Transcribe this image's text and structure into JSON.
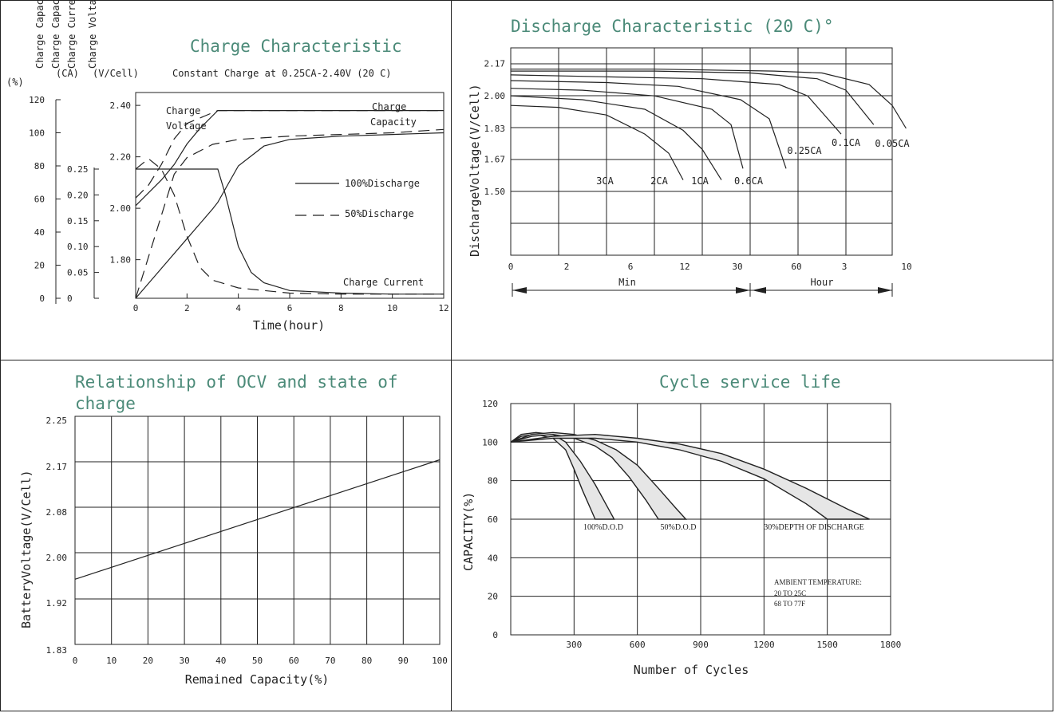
{
  "chart_data": [
    {
      "id": "charge",
      "type": "line",
      "title": "Charge Characteristic",
      "subtitle": "Constant Charge at 0.25CA-2.40V  (20 C)",
      "xlabel": "Time(hour)",
      "axis_headers": [
        "Charge Capacit",
        "Charge Curren",
        "Charge Voltag"
      ],
      "axis_units": [
        "(%)",
        "(CA)",
        "(V/Cell)"
      ],
      "xlim": [
        0,
        12
      ],
      "x_ticks": [
        "0",
        "2",
        "4",
        "6",
        "8",
        "10",
        "12"
      ],
      "capacity_ticks": [
        "0",
        "20",
        "40",
        "60",
        "80",
        "100",
        "120"
      ],
      "current_ticks": [
        "0",
        "0.05",
        "0.10",
        "0.15",
        "0.20",
        "0.25"
      ],
      "voltage_ticks": [
        "1.80",
        "2.00",
        "2.20",
        "2.40"
      ],
      "legend": [
        "100%Discharge",
        "50%Discharge"
      ],
      "annotations": [
        "Charge",
        "Voltage",
        "Charge",
        "Capacity",
        "Charge Current"
      ],
      "series": [
        {
          "style": "solid",
          "kind": "voltage",
          "x": [
            0,
            0.5,
            1.0,
            1.5,
            2.0,
            2.5,
            3.2,
            12
          ],
          "y": [
            2.01,
            2.06,
            2.11,
            2.17,
            2.25,
            2.31,
            2.38,
            2.38
          ]
        },
        {
          "style": "dashed",
          "kind": "voltage",
          "x": [
            0,
            0.5,
            1.0,
            1.5,
            2.0,
            3.2,
            12
          ],
          "y": [
            2.04,
            2.09,
            2.17,
            2.27,
            2.33,
            2.38,
            2.38
          ]
        },
        {
          "style": "solid",
          "kind": "capacity",
          "x": [
            0,
            1,
            2,
            3,
            3.2,
            4,
            5,
            6,
            8,
            10,
            12
          ],
          "y": [
            0,
            18,
            36,
            54,
            58,
            80,
            92,
            96,
            98,
            99,
            100
          ]
        },
        {
          "style": "dashed",
          "kind": "capacity",
          "x": [
            0,
            0.5,
            1,
            1.5,
            2,
            3,
            4,
            6,
            8,
            10,
            12
          ],
          "y": [
            0,
            25,
            50,
            75,
            85,
            93,
            96,
            98,
            99,
            100,
            102
          ]
        },
        {
          "style": "solid",
          "kind": "current",
          "x": [
            0,
            3.2,
            3.5,
            4,
            4.5,
            5,
            6,
            8,
            10,
            12
          ],
          "y": [
            0.25,
            0.25,
            0.2,
            0.1,
            0.05,
            0.03,
            0.015,
            0.01,
            0.008,
            0.008
          ]
        },
        {
          "style": "dashed",
          "kind": "current",
          "x": [
            0,
            0.5,
            1.0,
            1.5,
            2,
            2.5,
            3,
            4,
            5,
            6,
            8,
            12
          ],
          "y": [
            0.25,
            0.27,
            0.25,
            0.2,
            0.12,
            0.06,
            0.035,
            0.02,
            0.015,
            0.01,
            0.008,
            0.008
          ]
        }
      ]
    },
    {
      "id": "discharge",
      "type": "line",
      "title": "Discharge Characteristic  (20 C)°",
      "ylabel": "DischargeVoltage(V/Cell)",
      "y_ticks": [
        "1.50",
        "1.67",
        "1.83",
        "2.00",
        "2.17"
      ],
      "x_ticks": [
        "0",
        "2",
        "6",
        "12",
        "30",
        "60",
        "3",
        "10"
      ],
      "x_groups": [
        "Min",
        "Hour"
      ],
      "series": [
        {
          "name": "3CA",
          "x": [
            0,
            1,
            2,
            2.8,
            3.3,
            3.6
          ],
          "y": [
            1.95,
            1.94,
            1.9,
            1.8,
            1.7,
            1.56
          ]
        },
        {
          "name": "2CA",
          "x": [
            0,
            1.5,
            2.8,
            3.6,
            4.0,
            4.4
          ],
          "y": [
            2.0,
            1.98,
            1.93,
            1.82,
            1.72,
            1.56
          ]
        },
        {
          "name": "1CA",
          "x": [
            0,
            1.5,
            3.0,
            4.2,
            4.6,
            4.85
          ],
          "y": [
            2.04,
            2.03,
            2.0,
            1.93,
            1.85,
            1.62
          ]
        },
        {
          "name": "0.6CA",
          "x": [
            0,
            2,
            3.5,
            4.8,
            5.4,
            5.75
          ],
          "y": [
            2.08,
            2.07,
            2.05,
            1.98,
            1.88,
            1.62
          ]
        },
        {
          "name": "0.25CA",
          "x": [
            0,
            2,
            4,
            5.6,
            6.2,
            6.9
          ],
          "y": [
            2.11,
            2.1,
            2.09,
            2.06,
            2.0,
            1.8
          ]
        },
        {
          "name": "0.1CA",
          "x": [
            0,
            3,
            5,
            6.4,
            7.0,
            7.6
          ],
          "y": [
            2.13,
            2.13,
            2.12,
            2.09,
            2.03,
            1.85
          ]
        },
        {
          "name": "0.05CA",
          "x": [
            0,
            3,
            5.5,
            6.5,
            7.5,
            8.0,
            8.3
          ],
          "y": [
            2.14,
            2.14,
            2.13,
            2.12,
            2.06,
            1.95,
            1.83
          ]
        }
      ],
      "series_labels": [
        "3CA",
        "2CA",
        "1CA",
        "0.6CA",
        "0.25CA",
        "0.1CA",
        "0.05CA"
      ]
    },
    {
      "id": "ocv",
      "type": "line",
      "title": "Relationship of OCV and state of charge",
      "xlabel": "Remained Capacity(%)",
      "ylabel": "BatteryVoltage(V/Cell)",
      "xlim": [
        0,
        100
      ],
      "ylim": [
        1.83,
        2.25
      ],
      "x_ticks": [
        "0",
        "10",
        "20",
        "30",
        "40",
        "50",
        "60",
        "70",
        "80",
        "90",
        "100"
      ],
      "y_ticks": [
        "1.83",
        "1.92",
        "2.00",
        "2.08",
        "2.17",
        "2.25"
      ],
      "series": [
        {
          "x": [
            0,
            100
          ],
          "y": [
            1.95,
            2.17
          ]
        }
      ]
    },
    {
      "id": "cycle",
      "type": "area",
      "title": "Cycle service life",
      "xlabel": "Number of Cycles",
      "ylabel": "CAPACITY(%)",
      "xlim": [
        0,
        1800
      ],
      "ylim": [
        0,
        120
      ],
      "x_ticks": [
        "300",
        "600",
        "900",
        "1200",
        "1500",
        "1800"
      ],
      "y_ticks": [
        "0",
        "20",
        "40",
        "60",
        "80",
        "100",
        "120"
      ],
      "series_labels": [
        "100%D.O.D",
        "50%D.O.D",
        "30%DEPTH OF DISCHARGE"
      ],
      "note": [
        "AMBIENT TEMPERATURE:",
        "20 TO 25C",
        "68 TO 77F"
      ],
      "series": [
        {
          "name": "100%D.O.D",
          "upper": {
            "x": [
              0,
              50,
              120,
              200,
              260,
              330,
              400,
              450,
              490
            ],
            "y": [
              100,
              104,
              105,
              104,
              100,
              90,
              78,
              68,
              60
            ]
          },
          "lower": {
            "x": [
              0,
              50,
              120,
              200,
              260,
              300,
              340,
              380,
              400
            ],
            "y": [
              100,
              103,
              104,
              102,
              96,
              86,
              75,
              65,
              60
            ]
          }
        },
        {
          "name": "50%D.O.D",
          "upper": {
            "x": [
              0,
              100,
              200,
              300,
              400,
              500,
              600,
              700,
              780,
              830
            ],
            "y": [
              100,
              104,
              105,
              104,
              101,
              96,
              88,
              76,
              66,
              60
            ]
          },
          "lower": {
            "x": [
              0,
              100,
              200,
              300,
              400,
              480,
              560,
              640,
              700
            ],
            "y": [
              100,
              103,
              104,
              102,
              98,
              92,
              82,
              70,
              60
            ]
          }
        },
        {
          "name": "30%DEPTH OF DISCHARGE",
          "upper": {
            "x": [
              0,
              200,
              400,
              600,
              800,
              1000,
              1200,
              1400,
              1600,
              1700
            ],
            "y": [
              100,
              103,
              104,
              102,
              99,
              94,
              86,
              76,
              65,
              60
            ]
          },
          "lower": {
            "x": [
              0,
              200,
              400,
              600,
              800,
              1000,
              1200,
              1400,
              1500
            ],
            "y": [
              100,
              102,
              102,
              100,
              96,
              90,
              81,
              68,
              60
            ]
          }
        }
      ]
    }
  ]
}
